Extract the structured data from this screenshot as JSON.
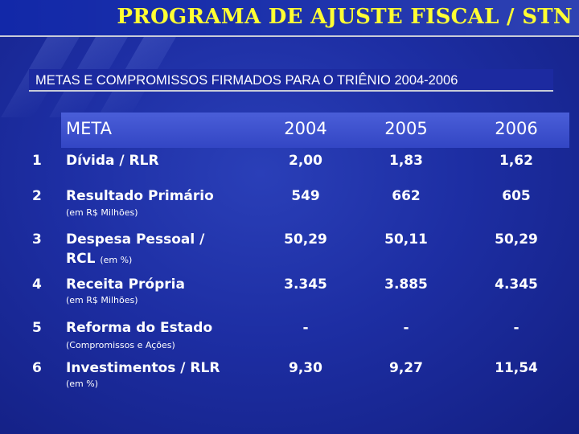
{
  "slide": {
    "title": "PROGRAMA DE AJUSTE FISCAL / STN",
    "subtitle": "METAS E COMPROMISSOS FIRMADOS PARA O TRIÊNIO 2004-2006"
  },
  "table": {
    "headers": {
      "meta": "META",
      "y2004": "2004",
      "y2005": "2005",
      "y2006": "2006"
    },
    "rows": [
      {
        "id": "1",
        "label": "Dívida / RLR",
        "note": "",
        "v2004": "2,00",
        "v2005": "1,83",
        "v2006": "1,62"
      },
      {
        "id": "2",
        "label": "Resultado Primário",
        "note": "(em R$ Milhões)",
        "v2004": "549",
        "v2005": "662",
        "v2006": "605"
      },
      {
        "id": "3",
        "label": "Despesa Pessoal /",
        "label2": "RCL",
        "note": "(em %)",
        "v2004": "50,29",
        "v2005": "50,11",
        "v2006": "50,29"
      },
      {
        "id": "4",
        "label": "Receita Própria",
        "note": "(em R$ Milhões)",
        "v2004": "3.345",
        "v2005": "3.885",
        "v2006": "4.345"
      },
      {
        "id": "5",
        "label": "Reforma do Estado",
        "note": "(Compromissos e Ações)",
        "v2004": "-",
        "v2005": "-",
        "v2006": "-"
      },
      {
        "id": "6",
        "label": "Investimentos / RLR",
        "note": "(em %)",
        "v2004": "9,30",
        "v2005": "9,27",
        "v2006": "11,54"
      }
    ]
  },
  "colors": {
    "background": "#1d2ea3",
    "title_text": "#ffff33",
    "header_band": "#3d50cf",
    "text": "#ffffff"
  }
}
